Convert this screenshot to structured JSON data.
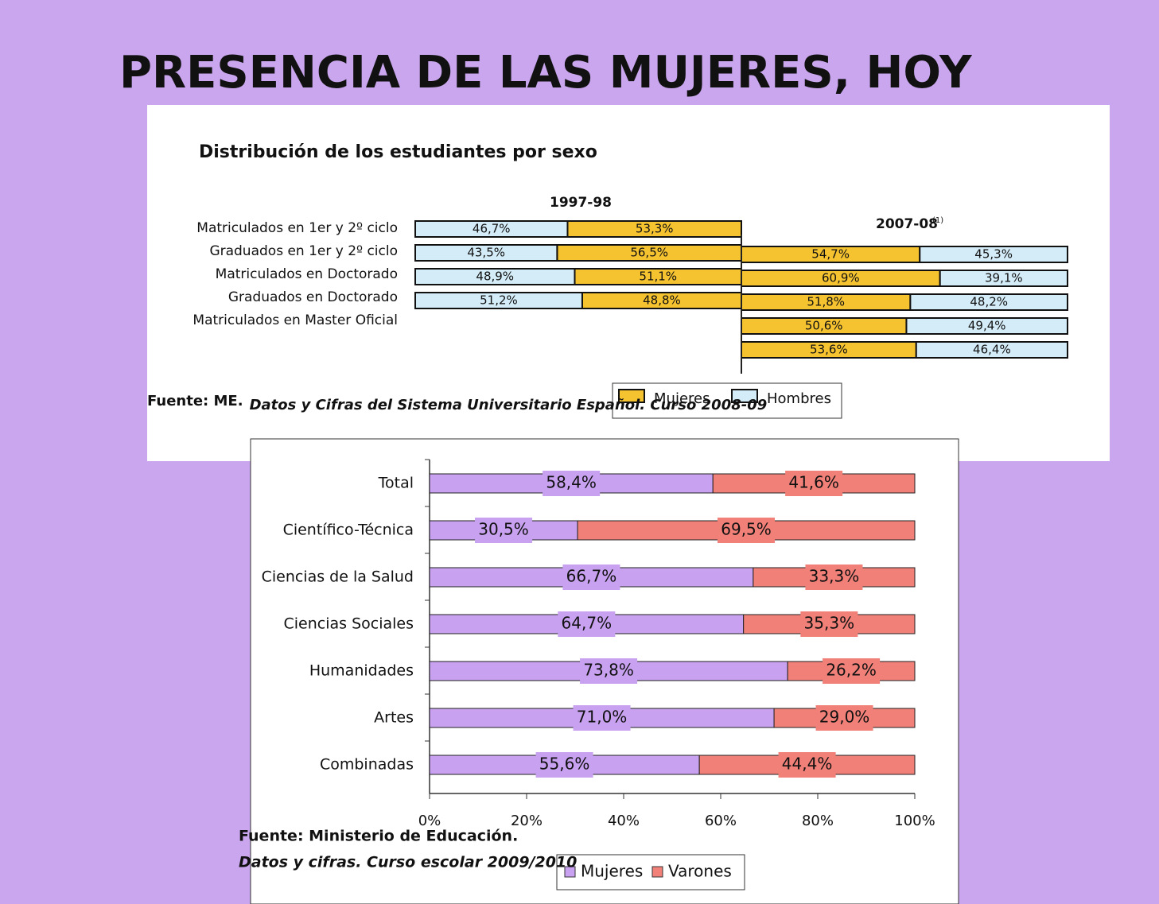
{
  "slide_title": "PRESENCIA DE LAS MUJERES, HOY",
  "chart_data": [
    {
      "type": "diverging-bar",
      "title": "Distribución de los estudiantes por sexo",
      "categories": [
        "Matriculados en 1er y 2º ciclo",
        "Graduados en 1er y 2º ciclo",
        "Matriculados en Doctorado",
        "Graduados en Doctorado",
        "Matriculados en Master Oficial"
      ],
      "periods": [
        "1997-98",
        "2007-08"
      ],
      "period_note": "(1)",
      "series": [
        {
          "name": "Mujeres",
          "color": "#f5c230",
          "values": [
            [
              53.3,
              54.7
            ],
            [
              56.5,
              60.9
            ],
            [
              51.1,
              51.8
            ],
            [
              48.8,
              50.6
            ],
            [
              null,
              53.6
            ]
          ],
          "value_labels": [
            [
              "53,3%",
              "54,7%"
            ],
            [
              "56,5%",
              "60,9%"
            ],
            [
              "51,1%",
              "51,8%"
            ],
            [
              "48,8%",
              "50,6%"
            ],
            [
              null,
              "53,6%"
            ]
          ]
        },
        {
          "name": "Hombres",
          "color": "#d4ecf8",
          "values": [
            [
              46.7,
              45.3
            ],
            [
              43.5,
              39.1
            ],
            [
              48.9,
              48.2
            ],
            [
              51.2,
              49.4
            ],
            [
              null,
              46.4
            ]
          ],
          "value_labels": [
            [
              "46,7%",
              "45,3%"
            ],
            [
              "43,5%",
              "39,1%"
            ],
            [
              "48,9%",
              "48,2%"
            ],
            [
              "51,2%",
              "49,4%"
            ],
            [
              null,
              "46,4%"
            ]
          ]
        }
      ],
      "xlim": [
        0,
        100
      ],
      "source": {
        "prefix": "Fuente: ME.",
        "title": "Datos y Cifras del Sistema Universitario Español. Curso 2008-09"
      }
    },
    {
      "type": "stacked-barh",
      "categories": [
        "Total",
        "Científico-Técnica",
        "Ciencias de la Salud",
        "Ciencias Sociales",
        "Humanidades",
        "Artes",
        "Combinadas"
      ],
      "series": [
        {
          "name": "Mujeres",
          "color": "#c8a2f0",
          "values": [
            58.4,
            30.5,
            66.7,
            64.7,
            73.8,
            71.0,
            55.6
          ],
          "value_labels": [
            "58,4%",
            "30,5%",
            "66,7%",
            "64,7%",
            "73,8%",
            "71,0%",
            "55,6%"
          ]
        },
        {
          "name": "Varones",
          "color": "#f08078",
          "values": [
            41.6,
            69.5,
            33.3,
            35.3,
            26.2,
            29.0,
            44.4
          ],
          "value_labels": [
            "41,6%",
            "69,5%",
            "33,3%",
            "35,3%",
            "26,2%",
            "29,0%",
            "44,4%"
          ]
        }
      ],
      "xlim": [
        0,
        100
      ],
      "xticks": [
        {
          "value": 0,
          "label": "0%"
        },
        {
          "value": 20,
          "label": "20%"
        },
        {
          "value": 40,
          "label": "40%"
        },
        {
          "value": 60,
          "label": "60%"
        },
        {
          "value": 80,
          "label": "80%"
        },
        {
          "value": 100,
          "label": "100%"
        }
      ],
      "source": [
        "Fuente: Ministerio de Educación.",
        "Datos y cifras. Curso escolar 2009/2010"
      ]
    }
  ]
}
